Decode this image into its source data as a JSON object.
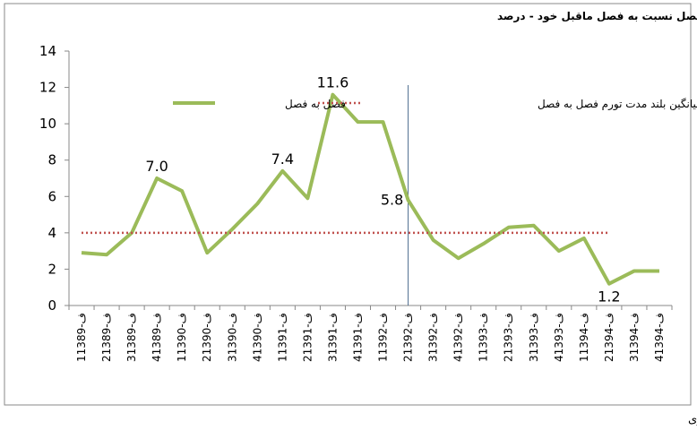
{
  "chart_data": {
    "type": "line",
    "title": "افزایش شاخص قیمت مصرف کننده در هر فصل نسبت به فصل ماقبل خود - درصد",
    "source": "مأخذ: بانک مرکزی",
    "categories": [
      "1ف-1389",
      "2ف-1389",
      "3ف-1389",
      "4ف-1389",
      "1ف-1390",
      "2ف-1390",
      "3ف-1390",
      "4ف-1390",
      "1ف-1391",
      "2ف-1391",
      "3ف-1391",
      "4ف-1391",
      "1ف-1392",
      "2ف-1392",
      "3ف-1392",
      "4ف-1392",
      "1ف-1393",
      "2ف-1393",
      "3ف-1393",
      "4ف-1393",
      "1ف-1394",
      "2ف-1394",
      "3ف-1394",
      "4ف-1394"
    ],
    "series": [
      {
        "name": "فصل به فصل",
        "color": "#9bbb59",
        "style": "solid",
        "values": [
          2.9,
          2.8,
          4.0,
          7.0,
          6.3,
          2.9,
          4.2,
          5.6,
          7.4,
          5.9,
          11.6,
          10.1,
          10.1,
          5.8,
          3.6,
          2.6,
          3.4,
          4.3,
          4.4,
          3.0,
          3.7,
          1.2,
          1.9,
          1.9
        ],
        "value_labels": [
          null,
          null,
          null,
          "7.0",
          null,
          null,
          null,
          null,
          "7.4",
          null,
          "11.6",
          null,
          null,
          "5.8",
          null,
          null,
          null,
          null,
          null,
          null,
          null,
          "1.2",
          null,
          null
        ]
      },
      {
        "name": "میانگین بلند مدت تورم فصل به فصل",
        "color": "#c0504d",
        "style": "dotted",
        "values": [
          4,
          4,
          4,
          4,
          4,
          4,
          4,
          4,
          4,
          4,
          4,
          4,
          4,
          4,
          4,
          4,
          4,
          4,
          4,
          4,
          4,
          4,
          null,
          null
        ]
      }
    ],
    "ylim": [
      0,
      14
    ],
    "yticks": [
      0,
      2,
      4,
      6,
      8,
      10,
      12,
      14
    ],
    "grid": false
  }
}
